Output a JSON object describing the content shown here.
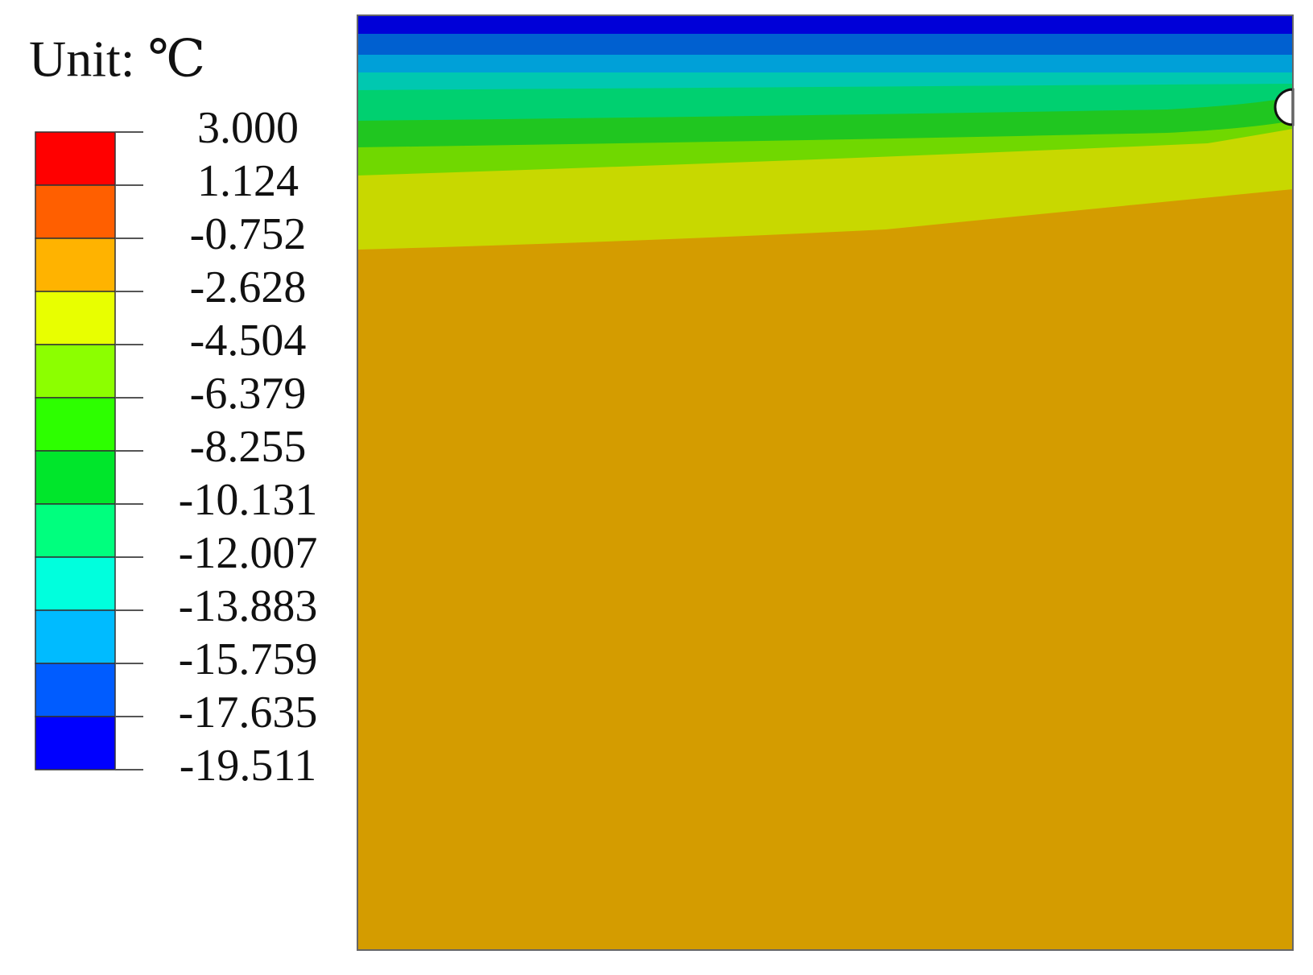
{
  "chart_data": {
    "type": "contour",
    "title": "Unit: ℃",
    "ylim": [
      -19.511,
      3.0
    ],
    "yticks": [
      {
        "value": 3.0,
        "label": "3.000"
      },
      {
        "value": 1.124,
        "label": "1.124"
      },
      {
        "value": -0.752,
        "label": "-0.752"
      },
      {
        "value": -2.628,
        "label": "-2.628"
      },
      {
        "value": -4.504,
        "label": "-4.504"
      },
      {
        "value": -6.379,
        "label": "-6.379"
      },
      {
        "value": -8.255,
        "label": "-8.255"
      },
      {
        "value": -10.131,
        "label": "-10.131"
      },
      {
        "value": -12.007,
        "label": "-12.007"
      },
      {
        "value": -13.883,
        "label": "-13.883"
      },
      {
        "value": -15.759,
        "label": "-15.759"
      },
      {
        "value": -17.635,
        "label": "-17.635"
      },
      {
        "value": -19.511,
        "label": "-19.511"
      }
    ],
    "colors": [
      "#ff0000",
      "#ff5f00",
      "#ffb300",
      "#e8ff00",
      "#8cff00",
      "#2dff00",
      "#00e62b",
      "#00ff7e",
      "#00ffdd",
      "#00bbff",
      "#005cff",
      "#0000ff"
    ]
  }
}
